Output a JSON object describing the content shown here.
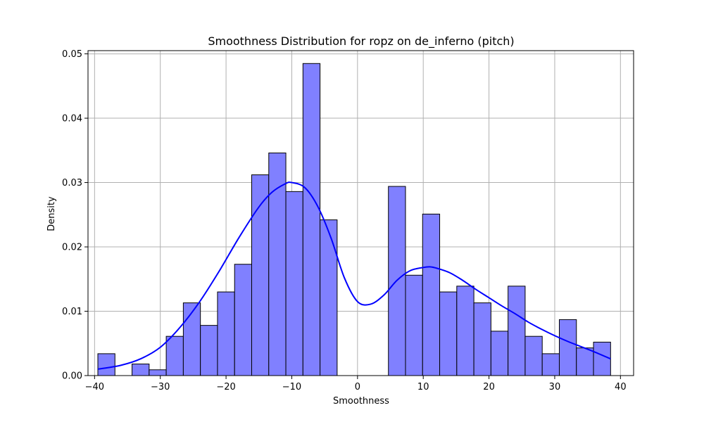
{
  "chart_data": {
    "type": "bar",
    "title": "Smoothness Distribution for ropz on de_inferno (pitch)",
    "xlabel": "Smoothness",
    "ylabel": "Density",
    "xlim": [
      -41,
      42
    ],
    "ylim": [
      0,
      0.0505
    ],
    "xticks": [
      -40,
      -30,
      -20,
      -10,
      0,
      10,
      20,
      30,
      40
    ],
    "yticks": [
      0.0,
      0.01,
      0.02,
      0.03,
      0.04,
      0.05
    ],
    "ytick_labels": [
      "0.00",
      "0.01",
      "0.02",
      "0.03",
      "0.04",
      "0.05"
    ],
    "grid": true,
    "colors": {
      "bar_fill": "#8080ff",
      "bar_edge": "#000000",
      "kde": "#0000ff",
      "grid": "#b0b0b0"
    },
    "bins": [
      {
        "x0": -39.5,
        "x1": -36.9,
        "value": 0.0034
      },
      {
        "x0": -36.9,
        "x1": -34.3,
        "value": 0.0
      },
      {
        "x0": -34.3,
        "x1": -31.7,
        "value": 0.0018
      },
      {
        "x0": -31.7,
        "x1": -29.1,
        "value": 0.0009
      },
      {
        "x0": -29.1,
        "x1": -26.5,
        "value": 0.0061
      },
      {
        "x0": -26.5,
        "x1": -23.9,
        "value": 0.0113
      },
      {
        "x0": -23.9,
        "x1": -21.3,
        "value": 0.0078
      },
      {
        "x0": -21.3,
        "x1": -18.7,
        "value": 0.013
      },
      {
        "x0": -18.7,
        "x1": -16.1,
        "value": 0.0173
      },
      {
        "x0": -16.1,
        "x1": -13.5,
        "value": 0.0312
      },
      {
        "x0": -13.5,
        "x1": -10.9,
        "value": 0.0346
      },
      {
        "x0": -10.9,
        "x1": -8.3,
        "value": 0.0286
      },
      {
        "x0": -8.3,
        "x1": -5.7,
        "value": 0.0485
      },
      {
        "x0": -5.7,
        "x1": -3.1,
        "value": 0.0242
      },
      {
        "x0": -3.1,
        "x1": -0.5,
        "value": 0.0
      },
      {
        "x0": -0.5,
        "x1": 2.1,
        "value": 0.0
      },
      {
        "x0": 2.1,
        "x1": 4.7,
        "value": 0.0
      },
      {
        "x0": 4.7,
        "x1": 7.3,
        "value": 0.0294
      },
      {
        "x0": 7.3,
        "x1": 9.9,
        "value": 0.0156
      },
      {
        "x0": 9.9,
        "x1": 12.5,
        "value": 0.0251
      },
      {
        "x0": 12.5,
        "x1": 15.1,
        "value": 0.013
      },
      {
        "x0": 15.1,
        "x1": 17.7,
        "value": 0.0139
      },
      {
        "x0": 17.7,
        "x1": 20.3,
        "value": 0.0113
      },
      {
        "x0": 20.3,
        "x1": 22.9,
        "value": 0.0069
      },
      {
        "x0": 22.9,
        "x1": 25.5,
        "value": 0.0139
      },
      {
        "x0": 25.5,
        "x1": 28.1,
        "value": 0.0061
      },
      {
        "x0": 28.1,
        "x1": 30.7,
        "value": 0.0034
      },
      {
        "x0": 30.7,
        "x1": 33.3,
        "value": 0.0087
      },
      {
        "x0": 33.3,
        "x1": 35.9,
        "value": 0.0043
      },
      {
        "x0": 35.9,
        "x1": 38.5,
        "value": 0.0052
      }
    ],
    "kde": {
      "x": [
        -39.5,
        -36,
        -33,
        -30,
        -27,
        -24,
        -21,
        -18,
        -15,
        -13,
        -11,
        -10,
        -8,
        -6,
        -4,
        -2,
        0,
        2,
        4,
        6,
        8,
        10,
        11,
        12,
        14,
        16,
        18,
        20,
        22,
        24,
        26,
        28,
        30,
        32,
        34,
        36,
        38.5
      ],
      "y": [
        0.001,
        0.0016,
        0.0026,
        0.0044,
        0.0075,
        0.0115,
        0.0163,
        0.0215,
        0.0262,
        0.0285,
        0.0298,
        0.03,
        0.0292,
        0.0262,
        0.0213,
        0.0152,
        0.0115,
        0.0111,
        0.0125,
        0.0148,
        0.0163,
        0.0168,
        0.0169,
        0.0167,
        0.016,
        0.0148,
        0.0134,
        0.0121,
        0.0108,
        0.0096,
        0.0083,
        0.0072,
        0.0062,
        0.0053,
        0.0045,
        0.0037,
        0.0026
      ]
    }
  }
}
